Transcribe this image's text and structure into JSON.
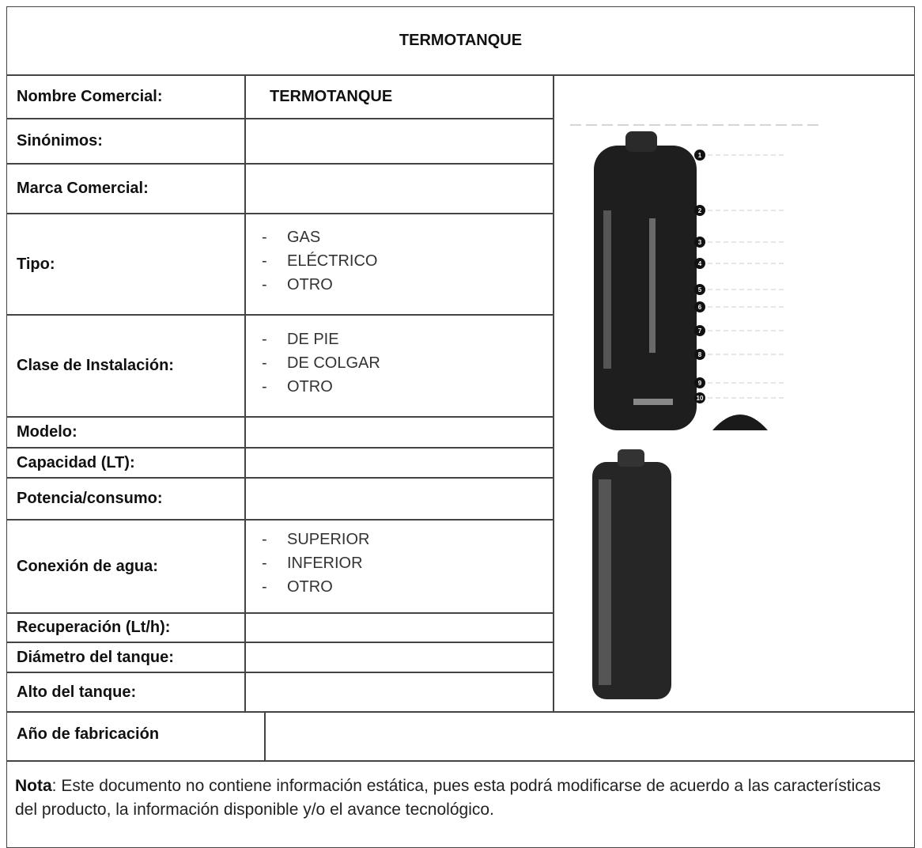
{
  "header": {
    "title": "TERMOTANQUE"
  },
  "rows": [
    {
      "label": "Nombre Comercial:",
      "value": "TERMOTANQUE"
    },
    {
      "label": "Sinónimos:"
    },
    {
      "label": "Marca Comercial:"
    },
    {
      "label": "Tipo:",
      "marker": "-",
      "items": [
        "GAS",
        "ELÉCTRICO",
        "OTRO"
      ]
    },
    {
      "label": "Clase de Instalación:",
      "marker": "-",
      "items": [
        "DE PIE",
        "DE COLGAR",
        "OTRO"
      ]
    },
    {
      "label": "Modelo:"
    },
    {
      "label": "Capacidad (LT):"
    },
    {
      "label": "Potencia/consumo:"
    },
    {
      "label": "Conexión de agua:",
      "marker": "-",
      "items": [
        "SUPERIOR",
        "INFERIOR",
        "OTRO"
      ]
    },
    {
      "label": "Recuperación (Lt/h):"
    },
    {
      "label": "Diámetro del tanque:"
    },
    {
      "label": "Alto del tanque:"
    }
  ],
  "year_row": {
    "label": "Año de fabricación"
  },
  "figure": {
    "callouts": [
      "1",
      "2",
      "3",
      "4",
      "5",
      "6",
      "7",
      "8",
      "9",
      "10"
    ]
  },
  "note": {
    "label": "Nota",
    "text": ": Este documento no contiene información estática, pues esta podrá modificarse de acuerdo a las características del producto, la información disponible y/o el avance tecnológico."
  }
}
